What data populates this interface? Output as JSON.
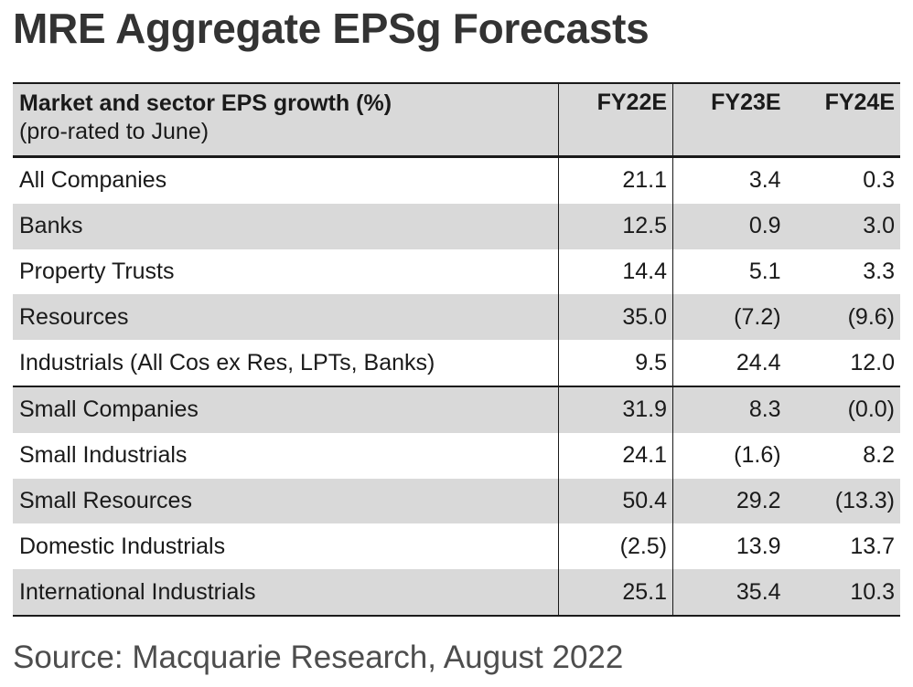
{
  "title": "MRE Aggregate EPSg Forecasts",
  "table": {
    "header": {
      "label": "Market and sector EPS growth (%)",
      "sublabel": "(pro-rated to June)",
      "columns": [
        "FY22E",
        "FY23E",
        "FY24E"
      ]
    },
    "rows": [
      {
        "name": "All Companies",
        "values": [
          "21.1",
          "3.4",
          "0.3"
        ]
      },
      {
        "name": "Banks",
        "values": [
          "12.5",
          "0.9",
          "3.0"
        ]
      },
      {
        "name": "Property Trusts",
        "values": [
          "14.4",
          "5.1",
          "3.3"
        ]
      },
      {
        "name": "Resources",
        "values": [
          "35.0",
          "(7.2)",
          "(9.6)"
        ]
      },
      {
        "name": "Industrials (All Cos ex Res, LPTs, Banks)",
        "values": [
          "9.5",
          "24.4",
          "12.0"
        ]
      },
      {
        "name": "Small Companies",
        "values": [
          "31.9",
          "8.3",
          "(0.0)"
        ]
      },
      {
        "name": "Small Industrials",
        "values": [
          "24.1",
          "(1.6)",
          "8.2"
        ]
      },
      {
        "name": "Small Resources",
        "values": [
          "50.4",
          "29.2",
          "(13.3)"
        ]
      },
      {
        "name": "Domestic Industrials",
        "values": [
          "(2.5)",
          "13.9",
          "13.7"
        ]
      },
      {
        "name": "International Industrials",
        "values": [
          "25.1",
          "35.4",
          "10.3"
        ]
      }
    ]
  },
  "source": "Source: Macquarie Research, August 2022"
}
